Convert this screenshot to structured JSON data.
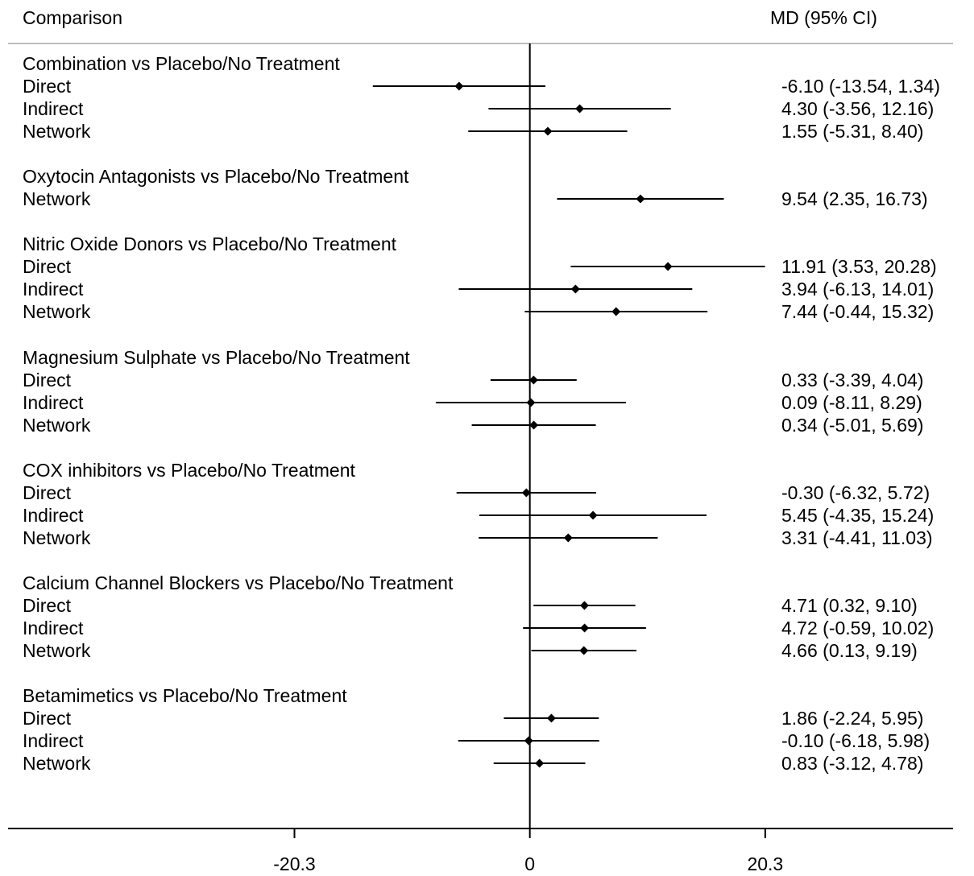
{
  "chart_data": {
    "type": "forest",
    "header": {
      "left": "Comparison",
      "right": "MD (95% CI)"
    },
    "x_ticks": [
      {
        "value": -20.3,
        "label": "-20.3"
      },
      {
        "value": 0,
        "label": "0"
      },
      {
        "value": 20.3,
        "label": "20.3"
      }
    ],
    "xlim": [
      -45,
      36.5
    ],
    "reference_line": 0,
    "groups": [
      {
        "title": "Combination vs Placebo/No Treatment",
        "rows": [
          {
            "label": "Direct",
            "estimate": -6.1,
            "lower": -13.54,
            "upper": 1.34,
            "text": "-6.10 (-13.54, 1.34)"
          },
          {
            "label": "Indirect",
            "estimate": 4.3,
            "lower": -3.56,
            "upper": 12.16,
            "text": "4.30 (-3.56, 12.16)"
          },
          {
            "label": "Network",
            "estimate": 1.55,
            "lower": -5.31,
            "upper": 8.4,
            "text": "1.55 (-5.31, 8.40)"
          }
        ]
      },
      {
        "title": "Oxytocin  Antagonists vs Placebo/No Treatment",
        "rows": [
          {
            "label": "Network",
            "estimate": 9.54,
            "lower": 2.35,
            "upper": 16.73,
            "text": "9.54 (2.35, 16.73)"
          }
        ]
      },
      {
        "title": "Nitric Oxide Donors vs Placebo/No Treatment",
        "rows": [
          {
            "label": "Direct",
            "estimate": 11.91,
            "lower": 3.53,
            "upper": 20.28,
            "text": "11.91 (3.53, 20.28)"
          },
          {
            "label": "Indirect",
            "estimate": 3.94,
            "lower": -6.13,
            "upper": 14.01,
            "text": "3.94 (-6.13, 14.01)"
          },
          {
            "label": "Network",
            "estimate": 7.44,
            "lower": -0.44,
            "upper": 15.32,
            "text": "7.44 (-0.44, 15.32)"
          }
        ]
      },
      {
        "title": "Magnesium Sulphate vs Placebo/No Treatment",
        "rows": [
          {
            "label": "Direct",
            "estimate": 0.33,
            "lower": -3.39,
            "upper": 4.04,
            "text": "0.33 (-3.39, 4.04)"
          },
          {
            "label": "Indirect",
            "estimate": 0.09,
            "lower": -8.11,
            "upper": 8.29,
            "text": "0.09 (-8.11, 8.29)"
          },
          {
            "label": "Network",
            "estimate": 0.34,
            "lower": -5.01,
            "upper": 5.69,
            "text": "0.34 (-5.01, 5.69)"
          }
        ]
      },
      {
        "title": "COX inhibitors vs Placebo/No Treatment",
        "rows": [
          {
            "label": "Direct",
            "estimate": -0.3,
            "lower": -6.32,
            "upper": 5.72,
            "text": "-0.30 (-6.32, 5.72)"
          },
          {
            "label": "Indirect",
            "estimate": 5.45,
            "lower": -4.35,
            "upper": 15.24,
            "text": "5.45 (-4.35, 15.24)"
          },
          {
            "label": "Network",
            "estimate": 3.31,
            "lower": -4.41,
            "upper": 11.03,
            "text": "3.31 (-4.41, 11.03)"
          }
        ]
      },
      {
        "title": "Calcium Channel Blockers vs Placebo/No Treatment",
        "rows": [
          {
            "label": "Direct",
            "estimate": 4.71,
            "lower": 0.32,
            "upper": 9.1,
            "text": "4.71 (0.32, 9.10)"
          },
          {
            "label": "Indirect",
            "estimate": 4.72,
            "lower": -0.59,
            "upper": 10.02,
            "text": "4.72 (-0.59, 10.02)"
          },
          {
            "label": "Network",
            "estimate": 4.66,
            "lower": 0.13,
            "upper": 9.19,
            "text": "4.66 (0.13, 9.19)"
          }
        ]
      },
      {
        "title": "Betamimetics vs Placebo/No Treatment",
        "rows": [
          {
            "label": "Direct",
            "estimate": 1.86,
            "lower": -2.24,
            "upper": 5.95,
            "text": "1.86 (-2.24, 5.95)"
          },
          {
            "label": "Indirect",
            "estimate": -0.1,
            "lower": -6.18,
            "upper": 5.98,
            "text": "-0.10 (-6.18, 5.98)"
          },
          {
            "label": "Network",
            "estimate": 0.83,
            "lower": -3.12,
            "upper": 4.78,
            "text": "0.83 (-3.12, 4.78)"
          }
        ]
      }
    ]
  }
}
